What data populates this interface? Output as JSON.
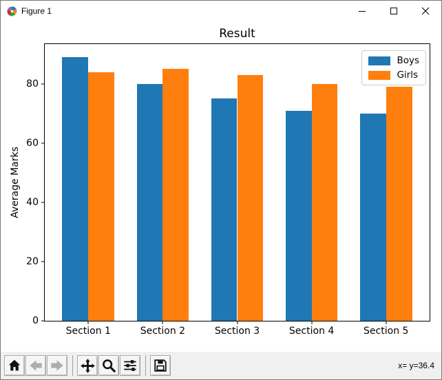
{
  "window": {
    "title": "Figure 1"
  },
  "chart_data": {
    "type": "bar",
    "title": "Result",
    "xlabel": "",
    "ylabel": "Average Marks",
    "categories": [
      "Section 1",
      "Section 2",
      "Section 3",
      "Section 4",
      "Section 5"
    ],
    "series": [
      {
        "name": "Boys",
        "color": "#1f77b4",
        "values": [
          89,
          80,
          75,
          71,
          70
        ]
      },
      {
        "name": "Girls",
        "color": "#ff7f0e",
        "values": [
          84,
          85,
          83,
          80,
          79
        ]
      }
    ],
    "yticks": [
      0,
      20,
      40,
      60,
      80
    ],
    "ylim": [
      0,
      93.45
    ],
    "bar_width": 0.35,
    "xlim": [
      -0.585,
      4.585
    ],
    "grid": false,
    "legend_position": "upper right"
  },
  "toolbar": {
    "status": "x= y=36.4",
    "buttons": [
      {
        "name": "home",
        "icon": "home-icon",
        "enabled": true
      },
      {
        "name": "back",
        "icon": "back-icon",
        "enabled": false
      },
      {
        "name": "forward",
        "icon": "forward-icon",
        "enabled": false
      },
      {
        "name": "pan",
        "icon": "pan-icon",
        "enabled": true
      },
      {
        "name": "zoom",
        "icon": "zoom-icon",
        "enabled": true
      },
      {
        "name": "configure-subplots",
        "icon": "sliders-icon",
        "enabled": true
      },
      {
        "name": "save",
        "icon": "save-icon",
        "enabled": true
      }
    ]
  }
}
